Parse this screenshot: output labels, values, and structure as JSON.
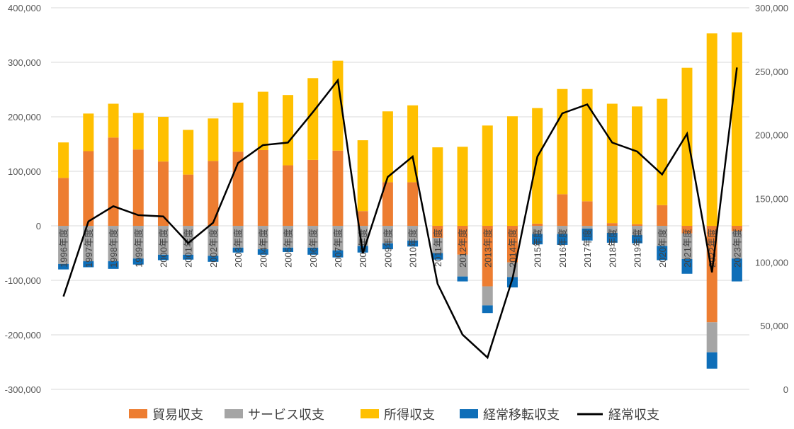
{
  "chart_data": {
    "type": "bar",
    "stacked": true,
    "categories": [
      "1996年度",
      "1997年度",
      "1998年度",
      "1999年度",
      "2000年度",
      "2001年度",
      "2002年度",
      "2003年度",
      "2004年度",
      "2005年度",
      "2006年度",
      "2007年度",
      "2008年度",
      "2009年度",
      "2010年度",
      "2011年度",
      "2012年度",
      "2013年度",
      "2014年度",
      "2015年度",
      "2016年度",
      "2017年度",
      "2018年度",
      "2019年度",
      "2020年度",
      "2021年度",
      "2022年度",
      "2023年度"
    ],
    "series": [
      {
        "name": "貿易収支",
        "kind": "bar",
        "axis": "left",
        "color": "#ED7D31",
        "values": [
          88000,
          137000,
          162000,
          140000,
          118000,
          94000,
          119000,
          136000,
          139000,
          111000,
          121000,
          138000,
          27000,
          80000,
          80000,
          -22000,
          -53000,
          -111000,
          -67000,
          4000,
          58000,
          45000,
          5000,
          3000,
          38000,
          -14000,
          -177000,
          -10000
        ]
      },
      {
        "name": "サービス収支",
        "kind": "bar",
        "axis": "left",
        "color": "#A5A5A5",
        "values": [
          -70000,
          -65000,
          -65000,
          -60000,
          -53000,
          -53000,
          -55000,
          -40000,
          -43000,
          -40000,
          -40000,
          -45000,
          -37000,
          -32000,
          -27000,
          -28000,
          -40000,
          -35000,
          -27000,
          -15000,
          -15000,
          -5000,
          -13000,
          -17000,
          -37000,
          -47000,
          -55000,
          -50000
        ]
      },
      {
        "name": "所得収支",
        "kind": "bar",
        "axis": "left",
        "color": "#FFC000",
        "values": [
          65000,
          69000,
          62000,
          67000,
          82000,
          82000,
          78000,
          90000,
          107000,
          129000,
          150000,
          165000,
          130000,
          130000,
          141000,
          144000,
          145000,
          184000,
          201000,
          212000,
          193000,
          206000,
          219000,
          216000,
          195000,
          290000,
          353000,
          355000
        ]
      },
      {
        "name": "経常移転収支",
        "kind": "bar",
        "axis": "left",
        "color": "#0E6EB8",
        "values": [
          -10000,
          -11000,
          -14000,
          -11000,
          -10000,
          -9000,
          -11000,
          -9000,
          -10000,
          -8000,
          -13000,
          -13000,
          -12000,
          -11000,
          -11000,
          -12000,
          -9000,
          -14000,
          -19000,
          -19000,
          -20000,
          -22000,
          -18000,
          -15000,
          -26000,
          -27000,
          -30000,
          -42000
        ]
      },
      {
        "name": "経常収支",
        "kind": "line",
        "axis": "right",
        "color": "#000000",
        "values": [
          73000,
          132000,
          144000,
          137000,
          136000,
          115000,
          131000,
          178000,
          192000,
          194000,
          218000,
          243000,
          107000,
          167000,
          183000,
          83000,
          43000,
          25000,
          87000,
          183000,
          217000,
          224000,
          194000,
          187000,
          169000,
          201000,
          92000,
          253000
        ]
      }
    ],
    "ylim": [
      -300000,
      400000
    ],
    "y2lim": [
      0,
      300000
    ],
    "yticks": [
      "400,000",
      "300,000",
      "200,000",
      "100,000",
      "0",
      "-100,000",
      "-200,000",
      "-300,000"
    ],
    "y2ticks": [
      "300,000",
      "250,000",
      "200,000",
      "150,000",
      "100,000",
      "50,000",
      "0"
    ],
    "grid": true,
    "legend": "bottom"
  }
}
